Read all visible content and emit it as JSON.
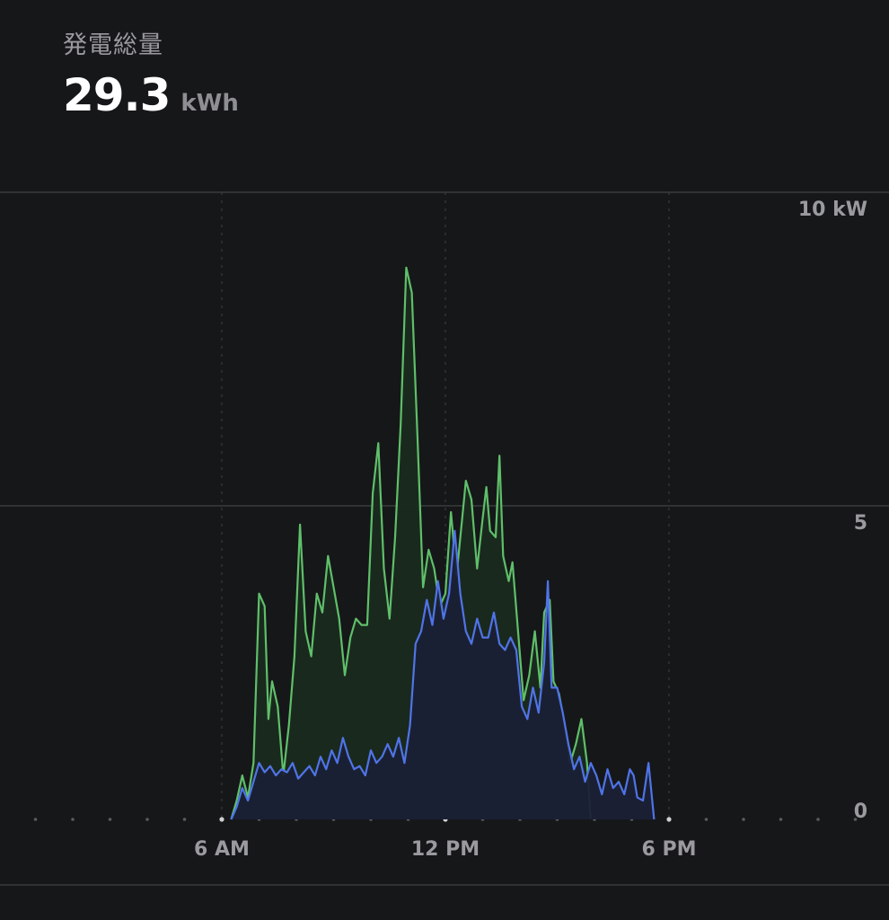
{
  "header": {
    "label": "発電総量",
    "value": "29.3",
    "unit": "kWh"
  },
  "colors": {
    "background": "#161719",
    "total_line": "#5fbf6a",
    "secondary_line": "#4f74e8",
    "grid": "#3a3b3e"
  },
  "chart_data": {
    "type": "area",
    "title": "",
    "xlabel": "",
    "ylabel": "",
    "x_ticks": [
      "6 AM",
      "12 PM",
      "6 PM"
    ],
    "x_ticks_hours": [
      6,
      12,
      18
    ],
    "y_ticks": [
      "10 kW",
      "5",
      "0"
    ],
    "y_ticks_values": [
      10,
      5,
      0
    ],
    "xlim_hours": [
      0,
      24
    ],
    "ylim": [
      0,
      10
    ],
    "grid": true,
    "series": [
      {
        "color": "#5fbf6a",
        "fill": "#1a2a1e",
        "points": [
          [
            6.25,
            0.0
          ],
          [
            6.4,
            0.3
          ],
          [
            6.55,
            0.7
          ],
          [
            6.7,
            0.35
          ],
          [
            6.85,
            0.9
          ],
          [
            7.0,
            3.6
          ],
          [
            7.15,
            3.4
          ],
          [
            7.25,
            1.6
          ],
          [
            7.35,
            2.2
          ],
          [
            7.5,
            1.8
          ],
          [
            7.65,
            0.7
          ],
          [
            7.8,
            1.5
          ],
          [
            7.95,
            2.6
          ],
          [
            8.1,
            4.7
          ],
          [
            8.25,
            3.0
          ],
          [
            8.4,
            2.6
          ],
          [
            8.55,
            3.6
          ],
          [
            8.7,
            3.3
          ],
          [
            8.85,
            4.2
          ],
          [
            9.0,
            3.7
          ],
          [
            9.15,
            3.2
          ],
          [
            9.3,
            2.3
          ],
          [
            9.45,
            2.9
          ],
          [
            9.6,
            3.2
          ],
          [
            9.75,
            3.1
          ],
          [
            9.9,
            3.1
          ],
          [
            10.05,
            5.2
          ],
          [
            10.2,
            6.0
          ],
          [
            10.35,
            4.0
          ],
          [
            10.5,
            3.2
          ],
          [
            10.65,
            4.5
          ],
          [
            10.8,
            6.3
          ],
          [
            10.95,
            8.8
          ],
          [
            11.1,
            8.4
          ],
          [
            11.25,
            6.1
          ],
          [
            11.4,
            3.7
          ],
          [
            11.55,
            4.3
          ],
          [
            11.7,
            4.0
          ],
          [
            11.85,
            3.4
          ],
          [
            12.0,
            3.6
          ],
          [
            12.15,
            4.9
          ],
          [
            12.3,
            3.9
          ],
          [
            12.45,
            4.8
          ],
          [
            12.55,
            5.4
          ],
          [
            12.7,
            5.1
          ],
          [
            12.85,
            4.0
          ],
          [
            13.0,
            4.8
          ],
          [
            13.1,
            5.3
          ],
          [
            13.2,
            4.6
          ],
          [
            13.35,
            4.5
          ],
          [
            13.45,
            5.8
          ],
          [
            13.55,
            4.2
          ],
          [
            13.7,
            3.8
          ],
          [
            13.8,
            4.1
          ],
          [
            13.95,
            3.0
          ],
          [
            14.1,
            1.9
          ],
          [
            14.25,
            2.3
          ],
          [
            14.4,
            3.0
          ],
          [
            14.55,
            2.1
          ],
          [
            14.65,
            3.3
          ],
          [
            14.8,
            3.5
          ],
          [
            14.9,
            2.2
          ],
          [
            15.05,
            2.0
          ],
          [
            15.2,
            1.5
          ],
          [
            15.35,
            0.9
          ],
          [
            15.5,
            1.2
          ],
          [
            15.65,
            1.6
          ],
          [
            15.8,
            0.9
          ],
          [
            15.9,
            0.0
          ]
        ]
      },
      {
        "color": "#4f74e8",
        "fill": "#1a2035",
        "points": [
          [
            6.25,
            0.0
          ],
          [
            6.4,
            0.2
          ],
          [
            6.55,
            0.5
          ],
          [
            6.7,
            0.3
          ],
          [
            6.85,
            0.6
          ],
          [
            7.0,
            0.9
          ],
          [
            7.15,
            0.75
          ],
          [
            7.3,
            0.85
          ],
          [
            7.45,
            0.7
          ],
          [
            7.6,
            0.8
          ],
          [
            7.75,
            0.75
          ],
          [
            7.9,
            0.9
          ],
          [
            8.05,
            0.65
          ],
          [
            8.2,
            0.75
          ],
          [
            8.35,
            0.85
          ],
          [
            8.5,
            0.7
          ],
          [
            8.65,
            1.0
          ],
          [
            8.8,
            0.8
          ],
          [
            8.95,
            1.1
          ],
          [
            9.1,
            0.9
          ],
          [
            9.25,
            1.3
          ],
          [
            9.4,
            1.0
          ],
          [
            9.55,
            0.8
          ],
          [
            9.7,
            0.85
          ],
          [
            9.85,
            0.7
          ],
          [
            10.0,
            1.1
          ],
          [
            10.15,
            0.9
          ],
          [
            10.3,
            1.0
          ],
          [
            10.45,
            1.2
          ],
          [
            10.6,
            1.0
          ],
          [
            10.75,
            1.3
          ],
          [
            10.9,
            0.9
          ],
          [
            11.05,
            1.5
          ],
          [
            11.2,
            2.8
          ],
          [
            11.35,
            3.0
          ],
          [
            11.5,
            3.5
          ],
          [
            11.65,
            3.1
          ],
          [
            11.8,
            3.8
          ],
          [
            11.95,
            3.2
          ],
          [
            12.1,
            3.6
          ],
          [
            12.25,
            4.6
          ],
          [
            12.4,
            3.6
          ],
          [
            12.55,
            3.0
          ],
          [
            12.7,
            2.8
          ],
          [
            12.85,
            3.2
          ],
          [
            13.0,
            2.9
          ],
          [
            13.15,
            2.9
          ],
          [
            13.3,
            3.3
          ],
          [
            13.45,
            2.8
          ],
          [
            13.6,
            2.7
          ],
          [
            13.75,
            2.9
          ],
          [
            13.9,
            2.7
          ],
          [
            14.05,
            1.8
          ],
          [
            14.2,
            1.6
          ],
          [
            14.35,
            2.1
          ],
          [
            14.5,
            1.7
          ],
          [
            14.65,
            2.5
          ],
          [
            14.75,
            3.8
          ],
          [
            14.85,
            2.1
          ],
          [
            15.0,
            2.1
          ],
          [
            15.15,
            1.7
          ],
          [
            15.3,
            1.2
          ],
          [
            15.45,
            0.8
          ],
          [
            15.6,
            1.0
          ],
          [
            15.75,
            0.6
          ],
          [
            15.9,
            0.9
          ],
          [
            16.05,
            0.7
          ],
          [
            16.2,
            0.4
          ],
          [
            16.35,
            0.8
          ],
          [
            16.5,
            0.5
          ],
          [
            16.65,
            0.6
          ],
          [
            16.8,
            0.4
          ],
          [
            16.95,
            0.8
          ],
          [
            17.05,
            0.7
          ],
          [
            17.15,
            0.35
          ],
          [
            17.3,
            0.3
          ],
          [
            17.45,
            0.9
          ],
          [
            17.6,
            0.0
          ]
        ]
      }
    ]
  }
}
